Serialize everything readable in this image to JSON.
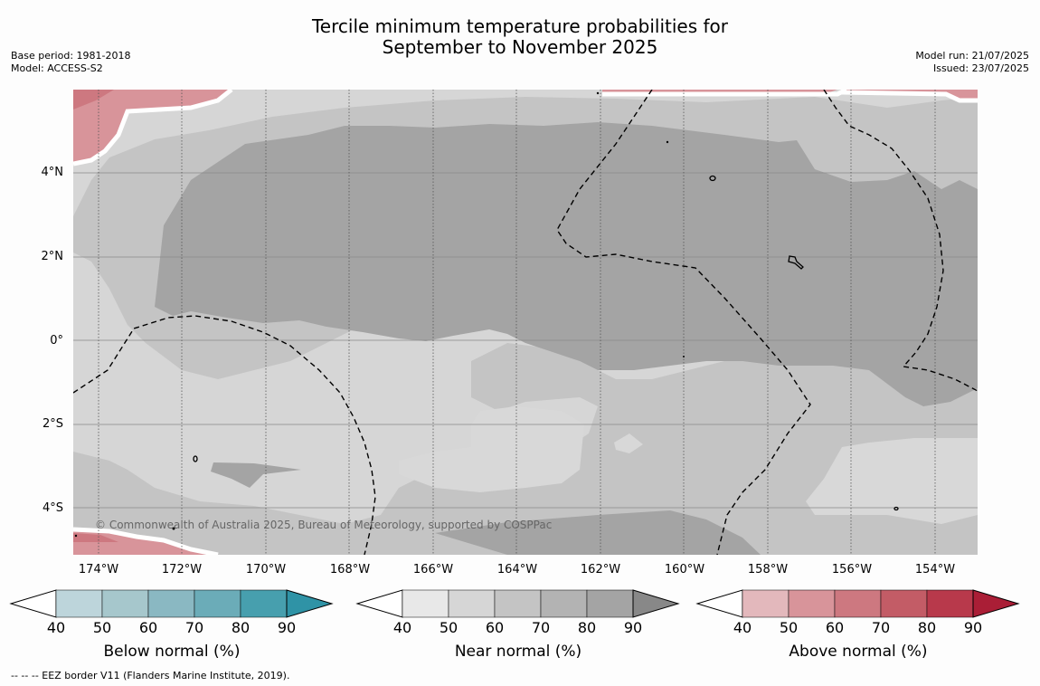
{
  "title_line1": "Tercile minimum temperature probabilities for",
  "title_line2": "September to November 2025",
  "base_period": "Base period: 1981-2018",
  "model": "Model: ACCESS-S2",
  "model_run": "Model run: 21/07/2025",
  "issued": "Issued: 23/07/2025",
  "lat_labels": [
    "4°N",
    "2°N",
    "0°",
    "2°S",
    "4°S"
  ],
  "lon_labels": [
    "174°W",
    "172°W",
    "170°W",
    "168°W",
    "166°W",
    "164°W",
    "162°W",
    "160°W",
    "158°W",
    "156°W",
    "154°W"
  ],
  "copyright": "© Commonwealth of Australia 2025, Bureau of Meteorology, supported by COSPPac",
  "colorbars": [
    {
      "title": "Below normal (%)",
      "colors": [
        "#bdd5db",
        "#a6c7cc",
        "#8ab8c2",
        "#6bacb8",
        "#479fae",
        "#2f93a6"
      ]
    },
    {
      "title": "Near normal (%)",
      "colors": [
        "#e8e8e8",
        "#d6d6d6",
        "#c4c4c4",
        "#b3b3b3",
        "#a4a4a4",
        "#888888"
      ]
    },
    {
      "title": "Above normal (%)",
      "colors": [
        "#e3b8bc",
        "#d8949a",
        "#cd7880",
        "#c35c66",
        "#b8394b",
        "#aa1e36"
      ]
    }
  ],
  "colorbar_ticks": [
    "40",
    "50",
    "60",
    "70",
    "80",
    "90"
  ],
  "footnote": "--  --  -- EEZ border V11 (Flanders Marine Institute, 2019)."
}
